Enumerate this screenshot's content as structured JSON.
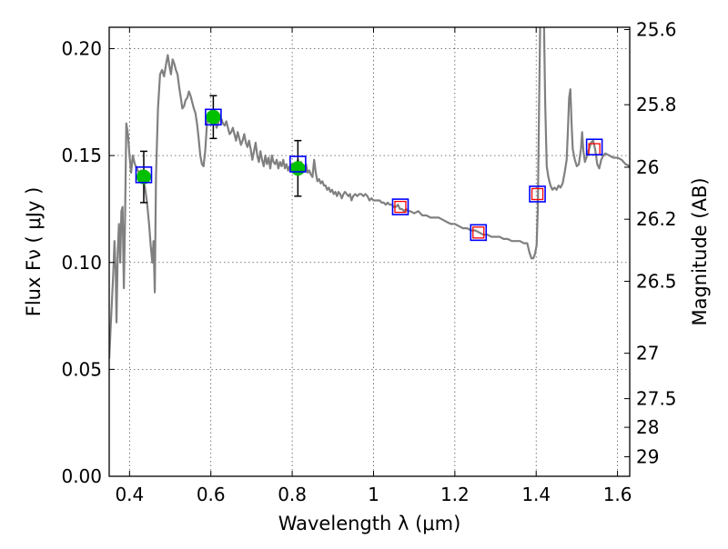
{
  "chart_data": {
    "type": "scatter",
    "xlabel": "Wavelength  λ (μm)",
    "ylabel": "Flux  Fν  ( μJy )",
    "ylabel2": "Magnitude (AB)",
    "xlim": [
      0.35,
      1.63
    ],
    "ylim": [
      0.0,
      0.21
    ],
    "grid": true,
    "xticks": [
      {
        "value": 0.4,
        "label": "0.4"
      },
      {
        "value": 0.6,
        "label": "0.6"
      },
      {
        "value": 0.8,
        "label": "0.8"
      },
      {
        "value": 1.0,
        "label": "1"
      },
      {
        "value": 1.2,
        "label": "1.2"
      },
      {
        "value": 1.4,
        "label": "1.4"
      },
      {
        "value": 1.6,
        "label": "1.6"
      }
    ],
    "yticks": [
      {
        "value": 0.0,
        "label": "0.00"
      },
      {
        "value": 0.05,
        "label": "0.05"
      },
      {
        "value": 0.1,
        "label": "0.10"
      },
      {
        "value": 0.15,
        "label": "0.15"
      },
      {
        "value": 0.2,
        "label": "0.20"
      }
    ],
    "mag_ticks": [
      {
        "value": 25.6,
        "label": "25.6"
      },
      {
        "value": 25.8,
        "label": "25.8"
      },
      {
        "value": 26.0,
        "label": "26"
      },
      {
        "value": 26.2,
        "label": "26.2"
      },
      {
        "value": 26.5,
        "label": "26.5"
      },
      {
        "value": 27.0,
        "label": "27"
      },
      {
        "value": 27.5,
        "label": "27.5"
      },
      {
        "value": 28.0,
        "label": "28"
      },
      {
        "value": 29.0,
        "label": "29"
      }
    ],
    "spectrum": {
      "color": "#808080",
      "points": [
        [
          0.35,
          0.055
        ],
        [
          0.355,
          0.075
        ],
        [
          0.36,
          0.095
        ],
        [
          0.363,
          0.11
        ],
        [
          0.366,
          0.095
        ],
        [
          0.368,
          0.072
        ],
        [
          0.371,
          0.105
        ],
        [
          0.374,
          0.118
        ],
        [
          0.377,
          0.1
        ],
        [
          0.38,
          0.124
        ],
        [
          0.383,
          0.126
        ],
        [
          0.386,
          0.088
        ],
        [
          0.389,
          0.12
        ],
        [
          0.392,
          0.165
        ],
        [
          0.396,
          0.16
        ],
        [
          0.4,
          0.15
        ],
        [
          0.404,
          0.142
        ],
        [
          0.408,
          0.15
        ],
        [
          0.413,
          0.146
        ],
        [
          0.418,
          0.144
        ],
        [
          0.423,
          0.142
        ],
        [
          0.428,
          0.143
        ],
        [
          0.433,
          0.139
        ],
        [
          0.438,
          0.135
        ],
        [
          0.443,
          0.128
        ],
        [
          0.448,
          0.118
        ],
        [
          0.452,
          0.108
        ],
        [
          0.456,
          0.1
        ],
        [
          0.459,
          0.11
        ],
        [
          0.462,
          0.086
        ],
        [
          0.465,
          0.14
        ],
        [
          0.47,
          0.172
        ],
        [
          0.475,
          0.188
        ],
        [
          0.48,
          0.19
        ],
        [
          0.485,
          0.187
        ],
        [
          0.49,
          0.193
        ],
        [
          0.494,
          0.197
        ],
        [
          0.498,
          0.192
        ],
        [
          0.502,
          0.188
        ],
        [
          0.506,
          0.195
        ],
        [
          0.51,
          0.193
        ],
        [
          0.514,
          0.19
        ],
        [
          0.518,
          0.188
        ],
        [
          0.522,
          0.182
        ],
        [
          0.526,
          0.177
        ],
        [
          0.53,
          0.172
        ],
        [
          0.534,
          0.173
        ],
        [
          0.538,
          0.176
        ],
        [
          0.542,
          0.177
        ],
        [
          0.546,
          0.18
        ],
        [
          0.55,
          0.178
        ],
        [
          0.554,
          0.175
        ],
        [
          0.558,
          0.172
        ],
        [
          0.562,
          0.17
        ],
        [
          0.566,
          0.165
        ],
        [
          0.57,
          0.158
        ],
        [
          0.574,
          0.15
        ],
        [
          0.578,
          0.146
        ],
        [
          0.582,
          0.145
        ],
        [
          0.586,
          0.152
        ],
        [
          0.59,
          0.164
        ],
        [
          0.594,
          0.17
        ],
        [
          0.598,
          0.168
        ],
        [
          0.602,
          0.166
        ],
        [
          0.606,
          0.17
        ],
        [
          0.61,
          0.167
        ],
        [
          0.614,
          0.163
        ],
        [
          0.618,
          0.165
        ],
        [
          0.622,
          0.168
        ],
        [
          0.626,
          0.167
        ],
        [
          0.63,
          0.165
        ],
        [
          0.634,
          0.164
        ],
        [
          0.638,
          0.166
        ],
        [
          0.642,
          0.163
        ],
        [
          0.646,
          0.16
        ],
        [
          0.65,
          0.161
        ],
        [
          0.654,
          0.163
        ],
        [
          0.658,
          0.16
        ],
        [
          0.662,
          0.157
        ],
        [
          0.666,
          0.161
        ],
        [
          0.67,
          0.158
        ],
        [
          0.674,
          0.155
        ],
        [
          0.678,
          0.157
        ],
        [
          0.682,
          0.16
        ],
        [
          0.686,
          0.156
        ],
        [
          0.69,
          0.154
        ],
        [
          0.694,
          0.157
        ],
        [
          0.698,
          0.153
        ],
        [
          0.702,
          0.148
        ],
        [
          0.706,
          0.152
        ],
        [
          0.71,
          0.156
        ],
        [
          0.714,
          0.15
        ],
        [
          0.718,
          0.147
        ],
        [
          0.722,
          0.152
        ],
        [
          0.726,
          0.148
        ],
        [
          0.73,
          0.145
        ],
        [
          0.734,
          0.15
        ],
        [
          0.738,
          0.146
        ],
        [
          0.742,
          0.149
        ],
        [
          0.746,
          0.144
        ],
        [
          0.75,
          0.15
        ],
        [
          0.754,
          0.147
        ],
        [
          0.758,
          0.146
        ],
        [
          0.762,
          0.148
        ],
        [
          0.766,
          0.144
        ],
        [
          0.77,
          0.147
        ],
        [
          0.774,
          0.145
        ],
        [
          0.778,
          0.148
        ],
        [
          0.782,
          0.144
        ],
        [
          0.786,
          0.146
        ],
        [
          0.79,
          0.143
        ],
        [
          0.794,
          0.145
        ],
        [
          0.798,
          0.146
        ],
        [
          0.802,
          0.144
        ],
        [
          0.806,
          0.142
        ],
        [
          0.81,
          0.145
        ],
        [
          0.814,
          0.148
        ],
        [
          0.818,
          0.146
        ],
        [
          0.822,
          0.147
        ],
        [
          0.826,
          0.143
        ],
        [
          0.83,
          0.145
        ],
        [
          0.834,
          0.146
        ],
        [
          0.838,
          0.142
        ],
        [
          0.842,
          0.143
        ],
        [
          0.846,
          0.141
        ],
        [
          0.85,
          0.14
        ],
        [
          0.854,
          0.148
        ],
        [
          0.858,
          0.142
        ],
        [
          0.862,
          0.138
        ],
        [
          0.866,
          0.139
        ],
        [
          0.87,
          0.137
        ],
        [
          0.874,
          0.138
        ],
        [
          0.878,
          0.136
        ],
        [
          0.882,
          0.136
        ],
        [
          0.886,
          0.134
        ],
        [
          0.89,
          0.135
        ],
        [
          0.894,
          0.133
        ],
        [
          0.898,
          0.134
        ],
        [
          0.902,
          0.132
        ],
        [
          0.906,
          0.133
        ],
        [
          0.91,
          0.131
        ],
        [
          0.914,
          0.133
        ],
        [
          0.918,
          0.132
        ],
        [
          0.922,
          0.13
        ],
        [
          0.926,
          0.132
        ],
        [
          0.93,
          0.133
        ],
        [
          0.934,
          0.132
        ],
        [
          0.938,
          0.131
        ],
        [
          0.942,
          0.132
        ],
        [
          0.946,
          0.129
        ],
        [
          0.95,
          0.131
        ],
        [
          0.955,
          0.132
        ],
        [
          0.96,
          0.131
        ],
        [
          0.965,
          0.132
        ],
        [
          0.97,
          0.132
        ],
        [
          0.975,
          0.131
        ],
        [
          0.98,
          0.132
        ],
        [
          0.985,
          0.131
        ],
        [
          0.99,
          0.129
        ],
        [
          0.995,
          0.13
        ],
        [
          1.0,
          0.129
        ],
        [
          1.005,
          0.129
        ],
        [
          1.01,
          0.129
        ],
        [
          1.015,
          0.129
        ],
        [
          1.02,
          0.128
        ],
        [
          1.025,
          0.128
        ],
        [
          1.03,
          0.127
        ],
        [
          1.035,
          0.128
        ],
        [
          1.04,
          0.127
        ],
        [
          1.045,
          0.127
        ],
        [
          1.05,
          0.126
        ],
        [
          1.055,
          0.126
        ],
        [
          1.06,
          0.127
        ],
        [
          1.065,
          0.125
        ],
        [
          1.07,
          0.125
        ],
        [
          1.075,
          0.124
        ],
        [
          1.08,
          0.125
        ],
        [
          1.085,
          0.124
        ],
        [
          1.09,
          0.124
        ],
        [
          1.1,
          0.123
        ],
        [
          1.11,
          0.124
        ],
        [
          1.12,
          0.122
        ],
        [
          1.13,
          0.122
        ],
        [
          1.14,
          0.121
        ],
        [
          1.15,
          0.121
        ],
        [
          1.16,
          0.121
        ],
        [
          1.17,
          0.12
        ],
        [
          1.18,
          0.119
        ],
        [
          1.19,
          0.118
        ],
        [
          1.2,
          0.118
        ],
        [
          1.21,
          0.117
        ],
        [
          1.22,
          0.116
        ],
        [
          1.23,
          0.116
        ],
        [
          1.24,
          0.115
        ],
        [
          1.25,
          0.115
        ],
        [
          1.26,
          0.114
        ],
        [
          1.27,
          0.113
        ],
        [
          1.28,
          0.113
        ],
        [
          1.29,
          0.112
        ],
        [
          1.3,
          0.112
        ],
        [
          1.31,
          0.112
        ],
        [
          1.32,
          0.111
        ],
        [
          1.33,
          0.111
        ],
        [
          1.34,
          0.11
        ],
        [
          1.35,
          0.11
        ],
        [
          1.36,
          0.11
        ],
        [
          1.37,
          0.109
        ],
        [
          1.378,
          0.109
        ],
        [
          1.383,
          0.105
        ],
        [
          1.388,
          0.102
        ],
        [
          1.393,
          0.102
        ],
        [
          1.397,
          0.104
        ],
        [
          1.401,
          0.108
        ],
        [
          1.404,
          0.125
        ],
        [
          1.407,
          0.17
        ],
        [
          1.41,
          0.215
        ],
        [
          1.413,
          0.215
        ],
        [
          1.416,
          0.23
        ],
        [
          1.419,
          0.215
        ],
        [
          1.422,
          0.175
        ],
        [
          1.426,
          0.145
        ],
        [
          1.43,
          0.14
        ],
        [
          1.435,
          0.136
        ],
        [
          1.44,
          0.134
        ],
        [
          1.445,
          0.135
        ],
        [
          1.45,
          0.134
        ],
        [
          1.455,
          0.136
        ],
        [
          1.46,
          0.135
        ],
        [
          1.465,
          0.137
        ],
        [
          1.47,
          0.142
        ],
        [
          1.475,
          0.148
        ],
        [
          1.478,
          0.162
        ],
        [
          1.481,
          0.177
        ],
        [
          1.484,
          0.181
        ],
        [
          1.487,
          0.165
        ],
        [
          1.49,
          0.153
        ],
        [
          1.495,
          0.148
        ],
        [
          1.5,
          0.145
        ],
        [
          1.505,
          0.146
        ],
        [
          1.51,
          0.153
        ],
        [
          1.513,
          0.161
        ],
        [
          1.516,
          0.152
        ],
        [
          1.52,
          0.147
        ],
        [
          1.525,
          0.15
        ],
        [
          1.53,
          0.153
        ],
        [
          1.535,
          0.156
        ],
        [
          1.54,
          0.157
        ],
        [
          1.545,
          0.153
        ],
        [
          1.55,
          0.146
        ],
        [
          1.555,
          0.144
        ],
        [
          1.56,
          0.148
        ],
        [
          1.565,
          0.15
        ],
        [
          1.57,
          0.151
        ],
        [
          1.58,
          0.15
        ],
        [
          1.59,
          0.149
        ],
        [
          1.6,
          0.149
        ],
        [
          1.61,
          0.148
        ],
        [
          1.62,
          0.146
        ],
        [
          1.63,
          0.145
        ]
      ]
    },
    "photometry": {
      "color": "#00c000",
      "points": [
        {
          "x": 0.435,
          "y": 0.14,
          "err": 0.012
        },
        {
          "x": 0.606,
          "y": 0.168,
          "err": 0.01
        },
        {
          "x": 0.814,
          "y": 0.144,
          "err": 0.013
        }
      ]
    },
    "model_boxes": {
      "color": "#0000ff",
      "points": [
        {
          "x": 0.435,
          "y": 0.141
        },
        {
          "x": 0.606,
          "y": 0.168
        },
        {
          "x": 0.814,
          "y": 0.146
        },
        {
          "x": 1.066,
          "y": 0.126
        },
        {
          "x": 1.258,
          "y": 0.114
        },
        {
          "x": 1.403,
          "y": 0.132
        },
        {
          "x": 1.543,
          "y": 0.154
        }
      ]
    },
    "upper_limits": {
      "color": "#ff0000",
      "points": [
        {
          "x": 1.066,
          "y": 0.126
        },
        {
          "x": 1.258,
          "y": 0.114
        },
        {
          "x": 1.403,
          "y": 0.132
        },
        {
          "x": 1.543,
          "y": 0.153
        }
      ]
    }
  }
}
